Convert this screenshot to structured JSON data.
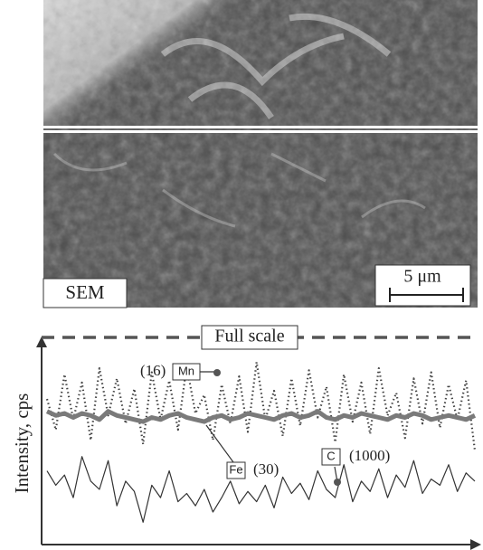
{
  "image": {
    "label": "SEM",
    "scale_bar": "5 μm"
  },
  "chart_data": {
    "type": "line",
    "ylabel": "Intensity, cps",
    "full_scale_label": "Full scale",
    "ylim": [
      0,
      100
    ],
    "categories": [
      null,
      null,
      null,
      null,
      null,
      null,
      null,
      null,
      null,
      null,
      null,
      null,
      null,
      null,
      null,
      null,
      null,
      null,
      null,
      null,
      null,
      null,
      null,
      null,
      null,
      null,
      null,
      null,
      null,
      null,
      null,
      null,
      null,
      null,
      null,
      null,
      null,
      null,
      null,
      null,
      null,
      null,
      null,
      null,
      null,
      null,
      null,
      null,
      null,
      null
    ],
    "series": [
      {
        "name": "Mn",
        "scale_label": "(16)",
        "color": "#444444",
        "style": "dotted",
        "values": [
          70,
          55,
          82,
          60,
          78,
          50,
          85,
          62,
          80,
          58,
          75,
          48,
          83,
          60,
          79,
          55,
          86,
          63,
          72,
          50,
          77,
          58,
          81,
          54,
          88,
          60,
          74,
          52,
          80,
          57,
          84,
          61,
          76,
          49,
          82,
          59,
          78,
          53,
          85,
          62,
          73,
          51,
          80,
          58,
          83,
          56,
          77,
          60,
          79,
          45
        ]
      },
      {
        "name": "Fe",
        "scale_label": "(30)",
        "color": "#7a7a7a",
        "style": "thick",
        "values": [
          64,
          62,
          63,
          61,
          63,
          62,
          60,
          64,
          62,
          61,
          60,
          59,
          61,
          60,
          62,
          63,
          61,
          60,
          59,
          61,
          62,
          60,
          61,
          63,
          62,
          61,
          60,
          62,
          63,
          61,
          62,
          64,
          61,
          60,
          62,
          61,
          63,
          62,
          61,
          60,
          62,
          61,
          63,
          62,
          60,
          61,
          62,
          61,
          60,
          62
        ]
      },
      {
        "name": "C",
        "scale_label": "(1000)",
        "color": "#333333",
        "style": "thin",
        "values": [
          35,
          28,
          33,
          22,
          42,
          30,
          26,
          40,
          18,
          30,
          25,
          10,
          28,
          22,
          35,
          20,
          24,
          18,
          26,
          15,
          22,
          30,
          19,
          25,
          20,
          28,
          17,
          32,
          24,
          29,
          21,
          35,
          26,
          22,
          38,
          20,
          30,
          25,
          36,
          22,
          33,
          27,
          40,
          24,
          31,
          28,
          38,
          25,
          34,
          30
        ]
      }
    ]
  }
}
